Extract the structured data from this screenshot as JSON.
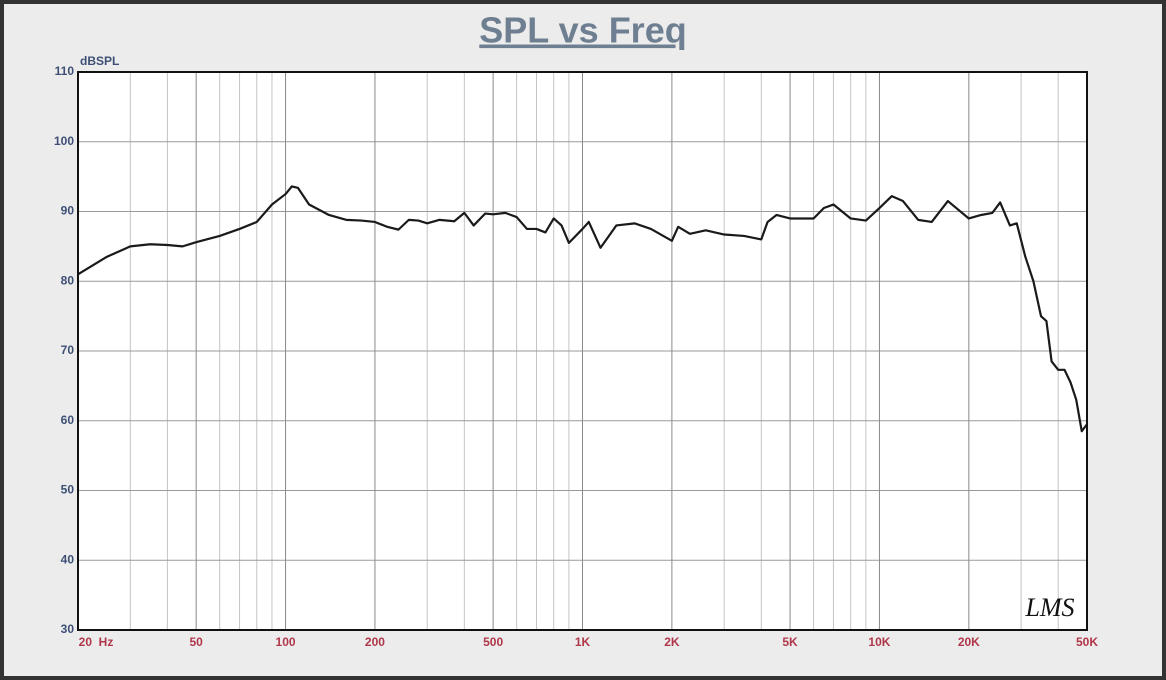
{
  "chart_data": {
    "type": "line",
    "title": "SPL vs Freq",
    "y_label": "dBSPL",
    "logo": "LMS",
    "x_scale": "log",
    "grid": true,
    "xlim": [
      20,
      50000
    ],
    "ylim": [
      30,
      110
    ],
    "yticks": [
      30,
      40,
      50,
      60,
      70,
      80,
      90,
      100,
      110
    ],
    "xticks": [
      {
        "value": 20,
        "label": "20  Hz"
      },
      50,
      100,
      200,
      500,
      {
        "value": 1000,
        "label": "1K"
      },
      {
        "value": 2000,
        "label": "2K"
      },
      {
        "value": 5000,
        "label": "5K"
      },
      {
        "value": 10000,
        "label": "10K"
      },
      {
        "value": 20000,
        "label": "20K"
      },
      {
        "value": 50000,
        "label": "50K"
      }
    ],
    "xminor": [
      30,
      40,
      60,
      70,
      80,
      90,
      300,
      400,
      600,
      700,
      800,
      900,
      3000,
      4000,
      6000,
      7000,
      8000,
      9000,
      30000,
      40000
    ],
    "x": [
      20,
      25,
      30,
      35,
      40,
      45,
      50,
      60,
      70,
      80,
      90,
      100,
      105,
      110,
      120,
      140,
      160,
      180,
      200,
      220,
      240,
      260,
      280,
      300,
      330,
      370,
      400,
      430,
      470,
      500,
      550,
      600,
      650,
      700,
      750,
      800,
      850,
      900,
      1000,
      1050,
      1150,
      1300,
      1500,
      1700,
      2000,
      2100,
      2300,
      2600,
      3000,
      3500,
      4000,
      4200,
      4500,
      5000,
      6000,
      6500,
      7000,
      8000,
      9000,
      10000,
      11000,
      12000,
      13500,
      15000,
      17000,
      20000,
      22000,
      24000,
      25500,
      27500,
      29000,
      31000,
      33000,
      35000,
      36500,
      38000,
      40000,
      42000,
      44000,
      46000,
      48000,
      50000
    ],
    "series": [
      {
        "name": "SPL",
        "color": "#1a1a1a",
        "values": [
          81,
          83.5,
          85,
          85.3,
          85.2,
          85,
          85.6,
          86.5,
          87.5,
          88.5,
          91,
          92.5,
          93.6,
          93.4,
          91,
          89.5,
          88.8,
          88.7,
          88.5,
          87.8,
          87.4,
          88.8,
          88.7,
          88.3,
          88.8,
          88.6,
          89.8,
          88,
          89.7,
          89.6,
          89.8,
          89.2,
          87.5,
          87.5,
          87,
          89,
          88,
          85.5,
          87.5,
          88.5,
          84.8,
          88,
          88.3,
          87.5,
          85.8,
          87.8,
          86.8,
          87.3,
          86.7,
          86.5,
          86,
          88.5,
          89.5,
          89,
          89,
          90.5,
          91,
          89,
          88.7,
          90.5,
          92.2,
          91.5,
          88.8,
          88.5,
          91.5,
          89,
          89.5,
          89.8,
          91.3,
          88,
          88.3,
          83.5,
          80,
          75,
          74.3,
          68.5,
          67.3,
          67.3,
          65.5,
          63,
          58.5,
          59.5
        ]
      }
    ]
  }
}
